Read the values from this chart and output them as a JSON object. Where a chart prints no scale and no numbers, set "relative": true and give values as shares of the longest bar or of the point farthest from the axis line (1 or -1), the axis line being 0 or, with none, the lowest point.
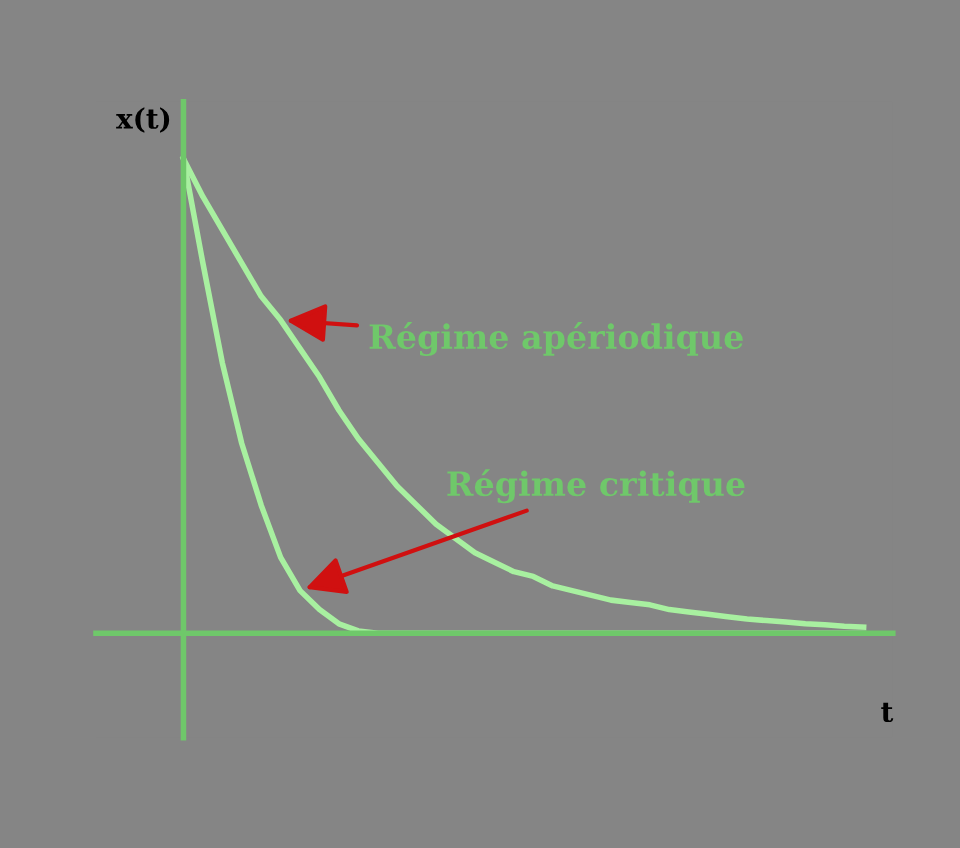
{
  "chart_data": {
    "type": "line",
    "relative": true,
    "xlabel": "t",
    "ylabel": "x(t)",
    "categories": [
      null,
      null,
      null,
      null,
      null,
      null,
      null,
      null,
      null,
      null,
      null,
      null,
      null,
      null,
      null,
      null,
      null,
      null,
      null,
      null,
      null,
      null,
      null,
      null,
      null,
      null,
      null,
      null,
      null,
      null,
      null,
      null,
      null,
      null,
      null,
      null
    ],
    "series": [
      {
        "color": "#a8f0a0",
        "values": [
          1.0,
          0.92,
          0.85,
          0.78,
          0.71,
          0.66,
          0.6,
          0.54,
          0.47,
          0.41,
          0.36,
          0.31,
          0.27,
          0.23,
          0.2,
          0.17,
          0.15,
          0.13,
          0.12,
          0.1,
          0.09,
          0.08,
          0.07,
          0.065,
          0.06,
          0.05,
          0.045,
          0.04,
          0.035,
          0.03,
          0.027,
          0.024,
          0.02,
          0.018,
          0.015,
          0.013
        ]
      },
      {
        "color": "#a8f0a0",
        "values": [
          1.0,
          0.78,
          0.57,
          0.4,
          0.27,
          0.16,
          0.09,
          0.05,
          0.02,
          0.005,
          0,
          0,
          0,
          0,
          0,
          0,
          0,
          0,
          0,
          0,
          0,
          0,
          0,
          0,
          0,
          0,
          0,
          0,
          0,
          0,
          0,
          0,
          0,
          0,
          0,
          0
        ]
      }
    ],
    "annotations": [
      "Régime apériodique",
      "Régime critique"
    ],
    "marker": "none",
    "line_style": "solid"
  }
}
